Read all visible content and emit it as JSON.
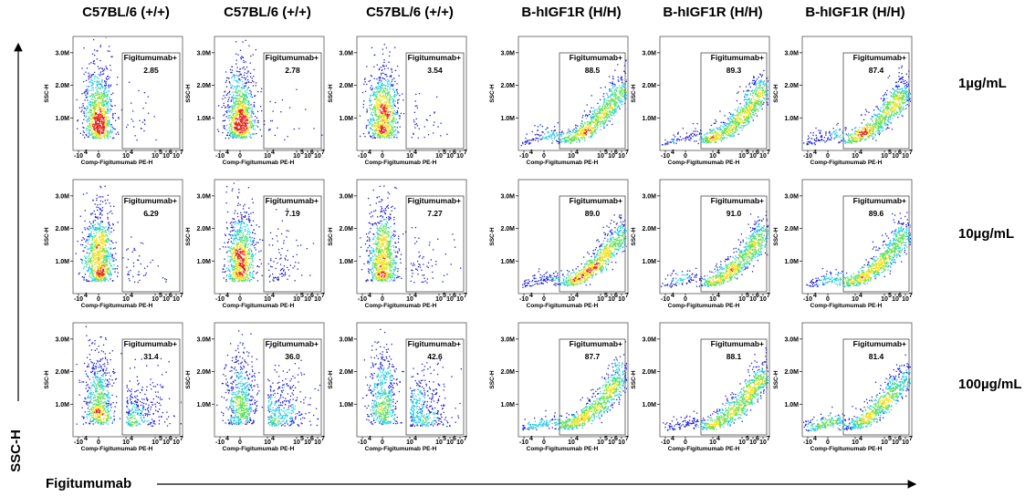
{
  "figure": {
    "column_titles": [
      "C57BL/6 (+/+)",
      "C57BL/6 (+/+)",
      "C57BL/6 (+/+)",
      "B-hIGF1R (H/H)",
      "B-hIGF1R (H/H)",
      "B-hIGF1R (H/H)"
    ],
    "row_labels": [
      "1µg/mL",
      "10µg/mL",
      "100µg/mL"
    ],
    "y_axis_title": "SSC-H",
    "x_axis_title": "Figitumumab"
  },
  "chart_data": {
    "type": "scatter",
    "subtype": "flow-cytometry-density-plot-grid",
    "panel_xlabel": "Comp-Figitumumab PE-H",
    "panel_ylabel": "SSC-H",
    "y_tick_labels": [
      "1.0M",
      "2.0M",
      "3.0M"
    ],
    "y_tick_values": [
      1000000,
      2000000,
      3000000
    ],
    "x_tick_labels": [
      "-10",
      "4",
      "0",
      "10",
      "4",
      "10",
      "5",
      "10",
      "6",
      "10",
      "7"
    ],
    "gate_label": "Figitumumab+",
    "gate_percentages": [
      [
        2.85,
        2.78,
        3.54,
        88.5,
        89.3,
        87.4
      ],
      [
        6.29,
        7.19,
        7.27,
        89.0,
        91.0,
        89.6
      ],
      [
        31.4,
        36.0,
        42.6,
        87.7,
        88.1,
        81.4
      ]
    ],
    "gate_percentage_labels": [
      [
        "2.85",
        "2.78",
        "3.54",
        "88.5",
        "89.3",
        "87.4"
      ],
      [
        "6.29",
        "7.19",
        "7.27",
        "89.0",
        "91.0",
        "89.6"
      ],
      [
        "31.4",
        "36.0",
        "42.6",
        "87.7",
        "88.1",
        "81.4"
      ]
    ],
    "colors": {
      "density_low": "#1f1fd6",
      "density_mid": "#22c9e6",
      "density_high_1": "#5fe05a",
      "density_high_2": "#f2e21e",
      "density_peak": "#e3261f"
    }
  }
}
